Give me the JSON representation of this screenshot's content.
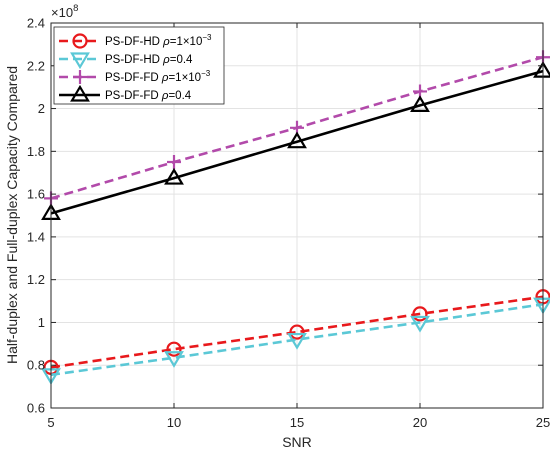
{
  "chart_data": {
    "type": "line",
    "xlabel": "SNR",
    "ylabel": "Half-duplex and Full-duplex Capacity Compared",
    "x": [
      5,
      10,
      15,
      20,
      25
    ],
    "xlim": [
      5,
      25
    ],
    "ylim": [
      0.6,
      2.4
    ],
    "y_exponent_label": "×10",
    "y_exponent": "8",
    "xticks": [
      "5",
      "10",
      "15",
      "20",
      "25"
    ],
    "yticks": [
      "0.6",
      "0.8",
      "1",
      "1.2",
      "1.4",
      "1.6",
      "1.8",
      "2",
      "2.2",
      "2.4"
    ],
    "grid": true,
    "legend_position": "top-left",
    "series": [
      {
        "label_main": "PS-DF-HD ",
        "label_rho": "ρ",
        "label_val": "=1×10",
        "label_sup": "−3",
        "values": [
          0.79,
          0.875,
          0.955,
          1.04,
          1.12
        ],
        "color": "#e8191c",
        "marker": "circle"
      },
      {
        "label_main": "PS-DF-HD ",
        "label_rho": "ρ",
        "label_val": "=0.4",
        "label_sup": "",
        "values": [
          0.755,
          0.835,
          0.92,
          1.0,
          1.085
        ],
        "color": "#5bc8d6",
        "marker": "triangle-down"
      },
      {
        "label_main": "PS-DF-FD ",
        "label_rho": "ρ",
        "label_val": "=1×10",
        "label_sup": "−3",
        "values": [
          1.58,
          1.75,
          1.91,
          2.08,
          2.24
        ],
        "color": "#b24aaa",
        "marker": "plus"
      },
      {
        "label_main": "PS-DF-FD ",
        "label_rho": "ρ",
        "label_val": "=0.4",
        "label_sup": "",
        "values": [
          1.51,
          1.675,
          1.845,
          2.015,
          2.175
        ],
        "color": "#000000",
        "marker": "triangle-up"
      }
    ]
  }
}
